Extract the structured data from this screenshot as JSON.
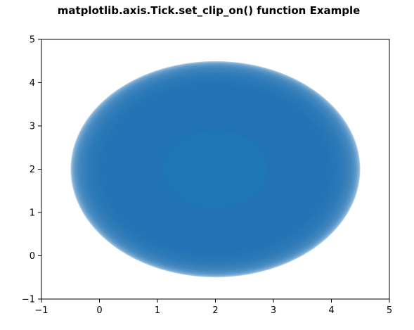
{
  "chart_data": {
    "type": "scatter",
    "title": "matplotlib.axis.Tick.set_clip_on() function Example",
    "xlabel": "",
    "ylabel": "",
    "xlim": [
      -1,
      5
    ],
    "ylim": [
      -1,
      5
    ],
    "xticks": [
      "−1",
      "0",
      "1",
      "2",
      "3",
      "4",
      "5"
    ],
    "yticks": [
      "−1",
      "0",
      "1",
      "2",
      "3",
      "4",
      "5"
    ],
    "grid": false,
    "color": "#1f77b4",
    "series": [
      {
        "shape": "filled ellipse made of overlapping translucent circles",
        "center": [
          2.0,
          2.0
        ],
        "x_range": [
          -0.5,
          4.5
        ],
        "y_range": [
          -0.5,
          4.5
        ]
      }
    ]
  }
}
